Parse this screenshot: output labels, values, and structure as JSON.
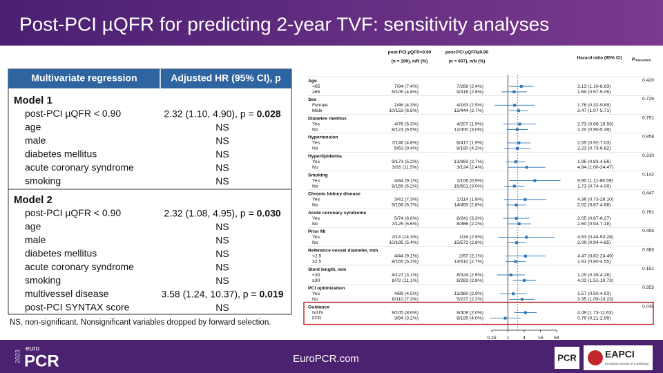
{
  "header": {
    "title": "Post-PCI µQFR for predicting 2-year TVF: sensitivity analyses"
  },
  "table": {
    "columns": [
      "Multivariate regression",
      "Adjusted HR (95% CI), p"
    ],
    "models": [
      {
        "title": "Model 1",
        "rows": [
          {
            "label": "post-PCI µQFR < 0.90",
            "result": "2.32 (1.10, 4.90), p = ",
            "p": "0.028"
          },
          {
            "label": "age",
            "result": "NS"
          },
          {
            "label": "male",
            "result": "NS"
          },
          {
            "label": "diabetes mellitus",
            "result": "NS"
          },
          {
            "label": "acute coronary syndrome",
            "result": "NS"
          },
          {
            "label": "smoking",
            "result": "NS"
          }
        ]
      },
      {
        "title": "Model 2",
        "rows": [
          {
            "label": "post-PCI µQFR < 0.90",
            "result": "2.32 (1.08, 4.95), p = ",
            "p": "0.030"
          },
          {
            "label": "age",
            "result": "NS"
          },
          {
            "label": "male",
            "result": "NS"
          },
          {
            "label": "diabetes mellitus",
            "result": "NS"
          },
          {
            "label": "acute coronary syndrome",
            "result": "NS"
          },
          {
            "label": "smoking",
            "result": "NS"
          },
          {
            "label": "multivessel disease",
            "result": "3.58 (1.24, 10.37), p = ",
            "p": "0.019"
          },
          {
            "label": "post-PCI SYNTAX score",
            "result": "NS"
          }
        ]
      }
    ],
    "footnote": "NS, non-significant. Nonsignificant variables dropped by forward selection."
  },
  "chart_data": {
    "type": "forest",
    "color": "#2e75b6",
    "log_scale": true,
    "col_low": [
      "post-PCI µQFR<0.90",
      "(n = 199), n/N (%)"
    ],
    "col_high": [
      "post-PCI µQFR≥0.90",
      "(n = 607), n/N (%)"
    ],
    "col_hr": "Hazard ratio (95% CI)",
    "col_p": "P",
    "col_p_sub": "interaction",
    "xlim": [
      0.25,
      64
    ],
    "xticks": [
      0.25,
      1,
      4,
      16,
      64
    ],
    "ref_lines": [
      1,
      2.32
    ],
    "groups": [
      {
        "name": "Age",
        "p": "0.420",
        "rows": [
          {
            "name": "<65",
            "low": "7/94 (7.4%)",
            "high": "7/289 (2.4%)",
            "hr": 3.13,
            "lo": 1.1,
            "hi": 8.93,
            "hr_label": "3.13 (1.10-8.93)"
          },
          {
            "name": "≥65",
            "low": "5/105 (4.8%)",
            "high": "9/318 (2.8%)",
            "hr": 1.69,
            "lo": 0.57,
            "hi": 5.05,
            "hr_label": "1.69 (0.57-5.05)"
          }
        ]
      },
      {
        "name": "Sex",
        "p": "0.725",
        "rows": [
          {
            "name": "Female",
            "low": "2/46 (4.3%)",
            "high": "4/163 (2.5%)",
            "hr": 1.76,
            "lo": 0.32,
            "hi": 9.89,
            "hr_label": "1.76 (0.32-9.89)"
          },
          {
            "name": "Male",
            "low": "10/153 (6.5%)",
            "high": "12/444 (2.7%)",
            "hr": 2.47,
            "lo": 1.07,
            "hi": 5.71,
            "hr_label": "2.47 (1.07-5.71)"
          }
        ]
      },
      {
        "name": "Diabetes mellitus",
        "p": "0.791",
        "rows": [
          {
            "name": "Yes",
            "low": "4/76 (5.3%)",
            "high": "4/207 (1.9%)",
            "hr": 2.73,
            "lo": 0.68,
            "hi": 10.93,
            "hr_label": "2.73 (0.68-10.93)"
          },
          {
            "name": "No",
            "low": "8/123 (6.5%)",
            "high": "12/400 (3.0%)",
            "hr": 2.2,
            "lo": 0.9,
            "hi": 5.39,
            "hr_label": "2.20 (0.90-5.39)"
          }
        ]
      },
      {
        "name": "Hypertension",
        "p": "0.858",
        "rows": [
          {
            "name": "Yes",
            "low": "7/146 (4.8%)",
            "high": "8/417 (1.9%)",
            "hr": 2.55,
            "lo": 0.92,
            "hi": 7.03,
            "hr_label": "2.55 (0.92-7.03)"
          },
          {
            "name": "No",
            "low": "5/53 (9.4%)",
            "high": "8/190 (4.2%)",
            "hr": 2.23,
            "lo": 0.73,
            "hi": 6.82,
            "hr_label": "2.23 (0.73-6.82)"
          }
        ]
      },
      {
        "name": "Hyperlipidemia",
        "p": "0.310",
        "rows": [
          {
            "name": "Yes",
            "low": "9/173 (5.2%)",
            "high": "13/483 (2.7%)",
            "hr": 1.95,
            "lo": 0.83,
            "hi": 4.56,
            "hr_label": "1.95 (0.83-4.56)"
          },
          {
            "name": "No",
            "low": "3/26 (11.5%)",
            "high": "3/124 (2.4%)",
            "hr": 4.94,
            "lo": 1.0,
            "hi": 24.47,
            "hr_label": "4.94 (1.00-24.47)"
          }
        ]
      },
      {
        "name": "Smoking",
        "p": "0.142",
        "rows": [
          {
            "name": "Yes",
            "low": "4/44 (9.1%)",
            "high": "1/106 (0.9%)",
            "hr": 9.9,
            "lo": 1.11,
            "hi": 88.59,
            "hr_label": "9.90 (1.11-88.59)"
          },
          {
            "name": "No",
            "low": "8/155 (5.2%)",
            "high": "15/501 (3.0%)",
            "hr": 1.73,
            "lo": 0.74,
            "hi": 4.09,
            "hr_label": "1.73 (0.74-4.09)"
          }
        ]
      },
      {
        "name": "Chronic kidney disease",
        "p": "0.447",
        "rows": [
          {
            "name": "Yes",
            "low": "3/41 (7.3%)",
            "high": "2/114 (1.8%)",
            "hr": 4.36,
            "lo": 0.73,
            "hi": 26.1,
            "hr_label": "4.36 (0.73-26.10)"
          },
          {
            "name": "No",
            "low": "9/158 (5.7%)",
            "high": "14/493 (2.8%)",
            "hr": 2.02,
            "lo": 0.87,
            "hi": 4.66,
            "hr_label": "2.02 (0.87-4.66)"
          }
        ]
      },
      {
        "name": "Acute coronary syndrome",
        "p": "0.761",
        "rows": [
          {
            "name": "Yes",
            "low": "5/74 (6.8%)",
            "high": "8/241 (3.3%)",
            "hr": 2.05,
            "lo": 0.67,
            "hi": 6.27,
            "hr_label": "2.05 (0.67-6.27)"
          },
          {
            "name": "No",
            "low": "7/125 (5.6%)",
            "high": "8/366 (2.2%)",
            "hr": 2.6,
            "lo": 0.94,
            "hi": 7.18,
            "hr_label": "2.60 (0.94-7.18)"
          }
        ]
      },
      {
        "name": "Prior MI",
        "p": "0.493",
        "rows": [
          {
            "name": "Yes",
            "low": "2/14 (14.3%)",
            "high": "1/34 (2.9%)",
            "hr": 4.83,
            "lo": 0.44,
            "hi": 53.28,
            "hr_label": "4.83 (0.44-53.28)"
          },
          {
            "name": "No",
            "low": "10/185 (5.4%)",
            "high": "15/573 (2.6%)",
            "hr": 2.09,
            "lo": 0.94,
            "hi": 4.65,
            "hr_label": "2.09 (0.94-4.65)"
          }
        ]
      },
      {
        "name": "Reference vessel diameter, mm",
        "p": "0.383",
        "rows": [
          {
            "name": "<2.5",
            "low": "4/44 (9.1%)",
            "high": "2/97 (2.1%)",
            "hr": 4.47,
            "lo": 0.82,
            "hi": 24.4,
            "hr_label": "4.47 (0.82-24.40)"
          },
          {
            "name": "≥2.5",
            "low": "8/155 (5.2%)",
            "high": "14/510 (2.7%)",
            "hr": 1.91,
            "lo": 0.8,
            "hi": 4.55,
            "hr_label": "1.91 (0.80-4.55)"
          }
        ]
      },
      {
        "name": "Stent length, mm",
        "p": "0.151",
        "rows": [
          {
            "name": "<30",
            "low": "4/127 (3.1%)",
            "high": "8/324 (2.5%)",
            "hr": 1.29,
            "lo": 0.39,
            "hi": 4.28,
            "hr_label": "1.29 (0.39-4.28)"
          },
          {
            "name": "≥30",
            "low": "8/72 (11.1%)",
            "high": "8/283 (2.8%)",
            "hr": 4.03,
            "lo": 1.51,
            "hi": 10.73,
            "hr_label": "4.03 (1.51-10.73)"
          }
        ]
      },
      {
        "name": "PCI optimization",
        "p": "0.353",
        "rows": [
          {
            "name": "Yes",
            "low": "4/89 (4.5%)",
            "high": "11/380 (2.9%)",
            "hr": 1.57,
            "lo": 0.5,
            "hi": 4.93,
            "hr_label": "1.57 (0.50-4.93)"
          },
          {
            "name": "No",
            "low": "8/110 (7.3%)",
            "high": "5/227 (2.2%)",
            "hr": 3.35,
            "lo": 1.09,
            "hi": 10.23,
            "hr_label": "3.35 (1.09-10.23)"
          }
        ]
      },
      {
        "name": "Guidance",
        "p": "0.038",
        "rows": [
          {
            "name": "IVUS",
            "low": "9/105 (8.6%)",
            "high": "8/408 (2.0%)",
            "hr": 4.49,
            "lo": 1.73,
            "hi": 11.63,
            "hr_label": "4.49 (1.73-11.63)"
          },
          {
            "name": "FFR",
            "low": "3/94 (3.2%)",
            "high": "8/199 (4.0%)",
            "hr": 0.79,
            "lo": 0.21,
            "hi": 2.99,
            "hr_label": "0.79 (0.21-2.99)"
          }
        ]
      }
    ]
  },
  "footer": {
    "year": "2023",
    "euro": "euro",
    "brand": "PCR",
    "url": "EuroPCR.com",
    "logo_pcr": "PCR",
    "logo_eapci": "EAPCI",
    "logo_esc": "European Society of Cardiology"
  }
}
